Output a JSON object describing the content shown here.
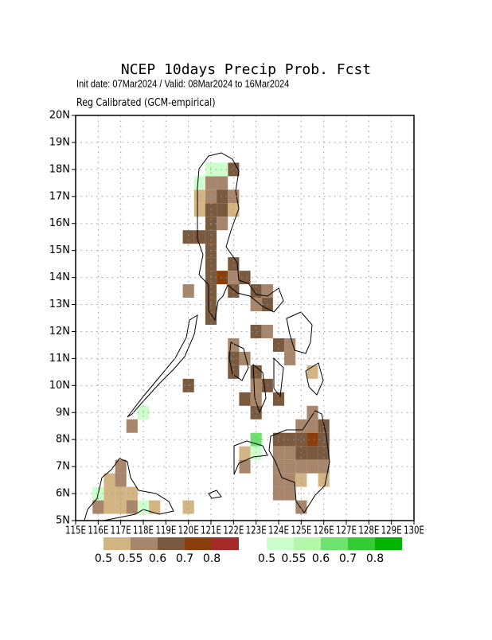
{
  "chart_data": {
    "type": "grid-map",
    "title": "NCEP 10days Precip Prob. Fcst",
    "subtitle": "Init date: 07Mar2024 / Valid: 08Mar2024 to 16Mar2024",
    "subtitle2": "Reg Calibrated (GCM-empirical)",
    "xlim": [
      115,
      130
    ],
    "ylim": [
      5,
      20
    ],
    "grid": true,
    "xticks": [
      {
        "value": 115,
        "label": "115E"
      },
      {
        "value": 116,
        "label": "116E"
      },
      {
        "value": 117,
        "label": "117E"
      },
      {
        "value": 118,
        "label": "118E"
      },
      {
        "value": 119,
        "label": "119E"
      },
      {
        "value": 120,
        "label": "120E"
      },
      {
        "value": 121,
        "label": "121E"
      },
      {
        "value": 122,
        "label": "122E"
      },
      {
        "value": 123,
        "label": "123E"
      },
      {
        "value": 124,
        "label": "124E"
      },
      {
        "value": 125,
        "label": "125E"
      },
      {
        "value": 126,
        "label": "126E"
      },
      {
        "value": 127,
        "label": "127E"
      },
      {
        "value": 128,
        "label": "128E"
      },
      {
        "value": 129,
        "label": "129E"
      },
      {
        "value": 130,
        "label": "130E"
      }
    ],
    "yticks": [
      {
        "value": 5,
        "label": "5N"
      },
      {
        "value": 6,
        "label": "6N"
      },
      {
        "value": 7,
        "label": "7N"
      },
      {
        "value": 8,
        "label": "8N"
      },
      {
        "value": 9,
        "label": "9N"
      },
      {
        "value": 10,
        "label": "10N"
      },
      {
        "value": 11,
        "label": "11N"
      },
      {
        "value": 12,
        "label": "12N"
      },
      {
        "value": 13,
        "label": "13N"
      },
      {
        "value": 14,
        "label": "14N"
      },
      {
        "value": 15,
        "label": "15N"
      },
      {
        "value": 16,
        "label": "16N"
      },
      {
        "value": 17,
        "label": "17N"
      },
      {
        "value": 18,
        "label": "18N"
      },
      {
        "value": 19,
        "label": "19N"
      },
      {
        "value": 20,
        "label": "20N"
      }
    ],
    "cell_size": 0.5,
    "dry_legend": {
      "colors": [
        "#d3b483",
        "#a8866b",
        "#7a5a3e",
        "#8a3e0c",
        "#a52a2a"
      ],
      "ticks": [
        0.5,
        0.55,
        0.6,
        0.7,
        0.8
      ]
    },
    "wet_legend": {
      "colors": [
        "#ccffcc",
        "#b4f7a8",
        "#6ee26e",
        "#33cc33",
        "#00b400"
      ],
      "ticks": [
        0.5,
        0.55,
        0.6,
        0.7,
        0.8
      ]
    },
    "dry_cells": [
      {
        "x": 122,
        "y": 18,
        "value": 0.6
      },
      {
        "x": 121,
        "y": 17.5,
        "value": 0.55
      },
      {
        "x": 121.5,
        "y": 17.5,
        "value": 0.55
      },
      {
        "x": 121,
        "y": 17,
        "value": 0.55
      },
      {
        "x": 121.5,
        "y": 17,
        "value": 0.6
      },
      {
        "x": 122,
        "y": 17,
        "value": 0.55
      },
      {
        "x": 120.5,
        "y": 17,
        "value": 0.5
      },
      {
        "x": 120.5,
        "y": 16.5,
        "value": 0.5
      },
      {
        "x": 121,
        "y": 16.5,
        "value": 0.6
      },
      {
        "x": 121.5,
        "y": 16.5,
        "value": 0.6
      },
      {
        "x": 122,
        "y": 16.5,
        "value": 0.5
      },
      {
        "x": 121,
        "y": 16,
        "value": 0.6
      },
      {
        "x": 121.5,
        "y": 16,
        "value": 0.55
      },
      {
        "x": 120,
        "y": 15.5,
        "value": 0.6
      },
      {
        "x": 120.5,
        "y": 15.5,
        "value": 0.6
      },
      {
        "x": 121,
        "y": 15.5,
        "value": 0.6
      },
      {
        "x": 121,
        "y": 15,
        "value": 0.6
      },
      {
        "x": 121,
        "y": 14.5,
        "value": 0.6
      },
      {
        "x": 122,
        "y": 14.5,
        "value": 0.6
      },
      {
        "x": 121,
        "y": 14,
        "value": 0.6
      },
      {
        "x": 121.5,
        "y": 14,
        "value": 0.7
      },
      {
        "x": 122,
        "y": 14,
        "value": 0.55
      },
      {
        "x": 122.5,
        "y": 14,
        "value": 0.6
      },
      {
        "x": 120,
        "y": 13.5,
        "value": 0.55
      },
      {
        "x": 121,
        "y": 13.5,
        "value": 0.6
      },
      {
        "x": 122,
        "y": 13.5,
        "value": 0.6
      },
      {
        "x": 123,
        "y": 13.5,
        "value": 0.6
      },
      {
        "x": 123.5,
        "y": 13.5,
        "value": 0.55
      },
      {
        "x": 123,
        "y": 13,
        "value": 0.55
      },
      {
        "x": 123.5,
        "y": 13,
        "value": 0.6
      },
      {
        "x": 121,
        "y": 13,
        "value": 0.6
      },
      {
        "x": 121,
        "y": 12.5,
        "value": 0.6
      },
      {
        "x": 123,
        "y": 12,
        "value": 0.6
      },
      {
        "x": 123.5,
        "y": 12,
        "value": 0.55
      },
      {
        "x": 122,
        "y": 11.5,
        "value": 0.55
      },
      {
        "x": 122,
        "y": 11,
        "value": 0.6
      },
      {
        "x": 122.5,
        "y": 11,
        "value": 0.55
      },
      {
        "x": 124,
        "y": 11.5,
        "value": 0.6
      },
      {
        "x": 124.5,
        "y": 11.5,
        "value": 0.55
      },
      {
        "x": 124.5,
        "y": 11,
        "value": 0.55
      },
      {
        "x": 122,
        "y": 10.5,
        "value": 0.6
      },
      {
        "x": 123,
        "y": 10.5,
        "value": 0.6
      },
      {
        "x": 125.5,
        "y": 10.5,
        "value": 0.5
      },
      {
        "x": 123,
        "y": 10,
        "value": 0.55
      },
      {
        "x": 123.5,
        "y": 10,
        "value": 0.6
      },
      {
        "x": 120,
        "y": 10,
        "value": 0.6
      },
      {
        "x": 122.5,
        "y": 9.5,
        "value": 0.6
      },
      {
        "x": 123,
        "y": 9.5,
        "value": 0.55
      },
      {
        "x": 124,
        "y": 9.5,
        "value": 0.6
      },
      {
        "x": 123,
        "y": 9,
        "value": 0.6
      },
      {
        "x": 125.5,
        "y": 9,
        "value": 0.55
      },
      {
        "x": 125,
        "y": 8.5,
        "value": 0.55
      },
      {
        "x": 125.5,
        "y": 8.5,
        "value": 0.55
      },
      {
        "x": 126,
        "y": 8.5,
        "value": 0.6
      },
      {
        "x": 117.5,
        "y": 8.5,
        "value": 0.55
      },
      {
        "x": 124,
        "y": 8,
        "value": 0.6
      },
      {
        "x": 124.5,
        "y": 8,
        "value": 0.6
      },
      {
        "x": 125,
        "y": 8,
        "value": 0.6
      },
      {
        "x": 125.5,
        "y": 8,
        "value": 0.7
      },
      {
        "x": 126,
        "y": 8,
        "value": 0.6
      },
      {
        "x": 124,
        "y": 7.5,
        "value": 0.55
      },
      {
        "x": 124.5,
        "y": 7.5,
        "value": 0.55
      },
      {
        "x": 125,
        "y": 7.5,
        "value": 0.6
      },
      {
        "x": 125.5,
        "y": 7.5,
        "value": 0.6
      },
      {
        "x": 126,
        "y": 7.5,
        "value": 0.6
      },
      {
        "x": 122.5,
        "y": 7.5,
        "value": 0.5
      },
      {
        "x": 124,
        "y": 7,
        "value": 0.55
      },
      {
        "x": 124.5,
        "y": 7,
        "value": 0.55
      },
      {
        "x": 125,
        "y": 7,
        "value": 0.55
      },
      {
        "x": 125.5,
        "y": 7,
        "value": 0.55
      },
      {
        "x": 126,
        "y": 7,
        "value": 0.55
      },
      {
        "x": 122.5,
        "y": 7,
        "value": 0.55
      },
      {
        "x": 117,
        "y": 7,
        "value": 0.55
      },
      {
        "x": 124,
        "y": 6.5,
        "value": 0.55
      },
      {
        "x": 124.5,
        "y": 6.5,
        "value": 0.55
      },
      {
        "x": 125,
        "y": 6.5,
        "value": 0.5
      },
      {
        "x": 126,
        "y": 6.5,
        "value": 0.5
      },
      {
        "x": 116.5,
        "y": 6.5,
        "value": 0.5
      },
      {
        "x": 117,
        "y": 6.5,
        "value": 0.55
      },
      {
        "x": 124,
        "y": 6,
        "value": 0.55
      },
      {
        "x": 124.5,
        "y": 6,
        "value": 0.55
      },
      {
        "x": 116.5,
        "y": 6,
        "value": 0.5
      },
      {
        "x": 117,
        "y": 6,
        "value": 0.5
      },
      {
        "x": 117.5,
        "y": 6,
        "value": 0.5
      },
      {
        "x": 125,
        "y": 5.5,
        "value": 0.55
      },
      {
        "x": 116,
        "y": 5.5,
        "value": 0.55
      },
      {
        "x": 116.5,
        "y": 5.5,
        "value": 0.5
      },
      {
        "x": 117,
        "y": 5.5,
        "value": 0.5
      },
      {
        "x": 117.5,
        "y": 5.5,
        "value": 0.55
      },
      {
        "x": 118.5,
        "y": 5.5,
        "value": 0.5
      },
      {
        "x": 120,
        "y": 5.5,
        "value": 0.5
      }
    ],
    "wet_cells": [
      {
        "x": 121,
        "y": 18,
        "value": 0.5
      },
      {
        "x": 121.5,
        "y": 18,
        "value": 0.5
      },
      {
        "x": 120.5,
        "y": 17.5,
        "value": 0.5
      },
      {
        "x": 123,
        "y": 8,
        "value": 0.6
      },
      {
        "x": 123,
        "y": 7.5,
        "value": 0.5
      },
      {
        "x": 118,
        "y": 9,
        "value": 0.5
      },
      {
        "x": 116,
        "y": 6,
        "value": 0.5
      },
      {
        "x": 118,
        "y": 5.5,
        "value": 0.5
      }
    ]
  }
}
